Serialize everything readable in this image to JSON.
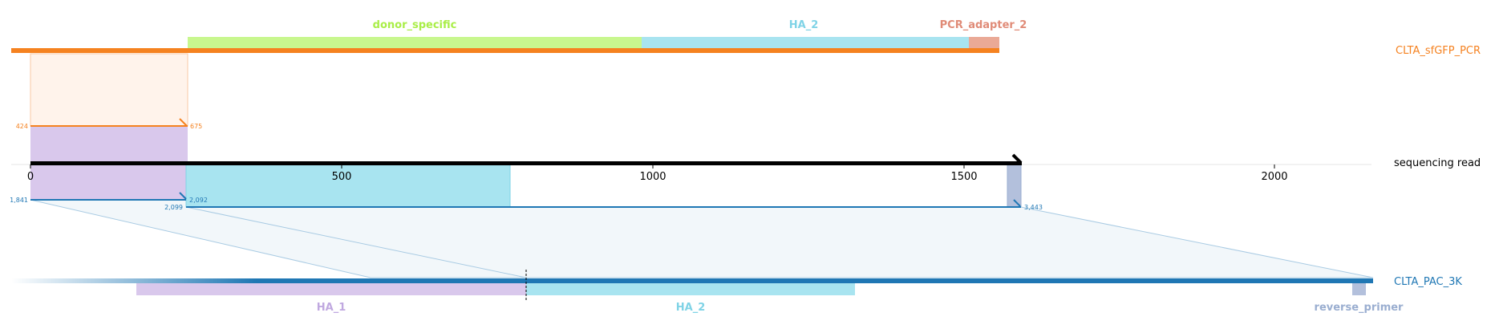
{
  "colors": {
    "orange": "#f58220",
    "blue": "#1f77b4",
    "black": "#000000",
    "donor_specific": "#a9ee47",
    "donor_specific_fill": "#c8f78e",
    "HA_1": "#c0a8e0",
    "HA_1_fill": "#d9c8ec",
    "HA_2": "#7fd3e6",
    "HA_2_fill": "#a8e4f0",
    "PCR_adapter_2": "#e08b77",
    "PCR_adapter_2_fill": "#eaa996",
    "reverse_primer": "#9aaed0",
    "reverse_primer_fill": "#b3c0dc",
    "alignment_fill": "#f2f7fa",
    "alignment_line": "#a9cbe3",
    "orange_region_fill": "#fff3eb"
  },
  "references": {
    "top": {
      "name": "CLTA_sfGFP_PCR",
      "features": [
        {
          "name": "donor_specific",
          "show_label": true
        },
        {
          "name": "HA_2",
          "show_label": true
        },
        {
          "name": "PCR_adapter_2",
          "show_label": true
        }
      ]
    },
    "read": {
      "name": "sequencing read",
      "ticks": [
        "0",
        "500",
        "1000",
        "1500",
        "2000"
      ]
    },
    "bottom": {
      "name": "CLTA_PAC_3K",
      "features": [
        {
          "name": "HA_1",
          "show_label": true
        },
        {
          "name": "HA_2",
          "show_label": true
        },
        {
          "name": "reverse_primer",
          "show_label": true
        }
      ]
    }
  },
  "alignments": {
    "top": {
      "ref_start": "424",
      "ref_end": "675"
    },
    "bottom": [
      {
        "ref_start": "1,841",
        "ref_end": "2,092"
      },
      {
        "ref_start": "2,099",
        "ref_end": "3,443"
      }
    ]
  }
}
